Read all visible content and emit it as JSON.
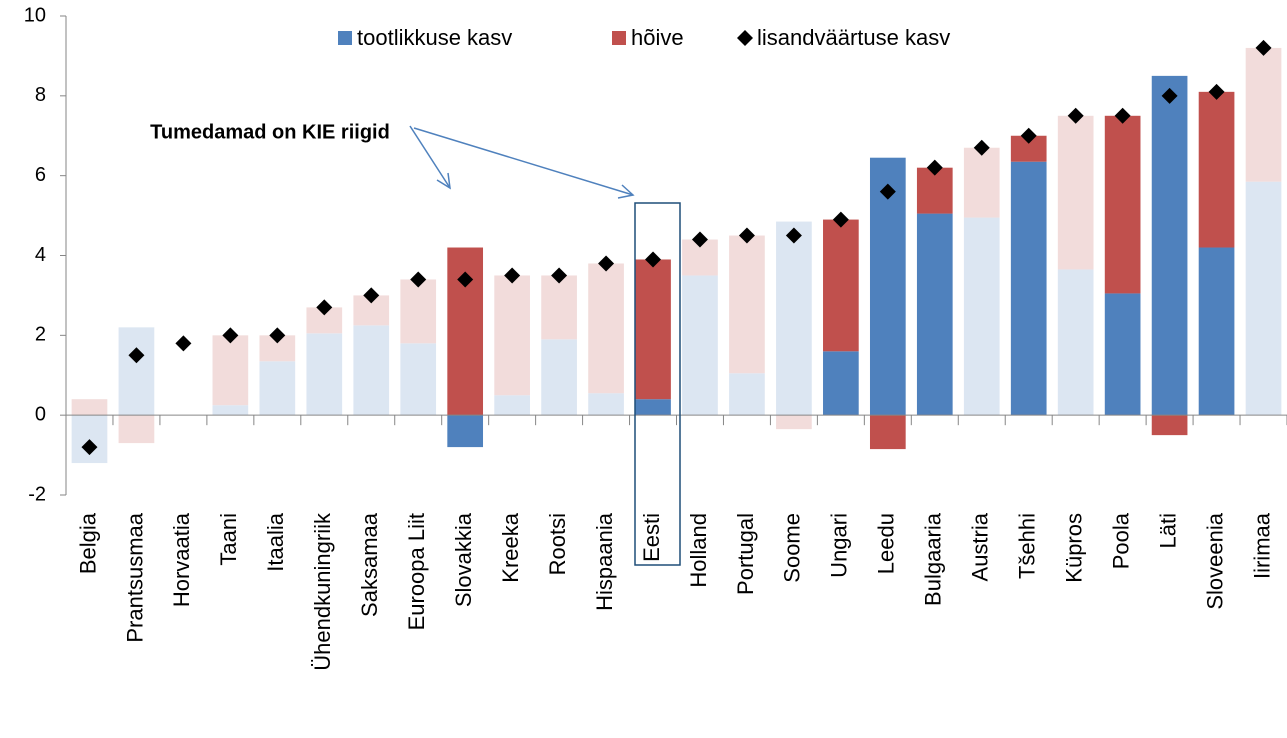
{
  "chart_data": {
    "type": "bar",
    "categories": [
      "Belgia",
      "Prantsusmaa",
      "Horvaatia",
      "Taani",
      "Itaalia",
      "Ühendkuningriik",
      "Saksamaa",
      "Euroopa Liit",
      "Slovakkia",
      "Kreeka",
      "Rootsi",
      "Hispaania",
      "Eesti",
      "Holland",
      "Portugal",
      "Soome",
      "Ungari",
      "Leedu",
      "Bulgaaria",
      "Austria",
      "Tšehhi",
      "Küpros",
      "Poola",
      "Läti",
      "Sloveenia",
      "Iirimaa"
    ],
    "series": [
      {
        "name": "tootlikkuse kasv",
        "color": "#4f81bd",
        "colors": [
          "#dce6f2",
          "#dce6f2",
          "#dce6f2",
          "#dce6f2",
          "#dce6f2",
          "#dce6f2",
          "#dce6f2",
          "#dce6f2",
          "#4f81bd",
          "#dce6f2",
          "#dce6f2",
          "#dce6f2",
          "#4f81bd",
          "#dce6f2",
          "#dce6f2",
          "#dce6f2",
          "#4f81bd",
          "#4f81bd",
          "#4f81bd",
          "#dce6f2",
          "#4f81bd",
          "#dce6f2",
          "#4f81bd",
          "#4f81bd",
          "#4f81bd",
          "#dce6f2"
        ],
        "values": [
          -1.2,
          2.2,
          null,
          0.25,
          1.35,
          2.05,
          2.25,
          1.8,
          -0.8,
          0.5,
          1.9,
          0.55,
          0.4,
          3.5,
          1.05,
          4.85,
          1.6,
          6.45,
          5.05,
          4.95,
          6.35,
          3.65,
          3.05,
          8.5,
          4.2,
          5.85
        ]
      },
      {
        "name": "hõive",
        "color": "#c0504d",
        "colors": [
          "#f2dcdb",
          "#f2dcdb",
          "#f2dcdb",
          "#f2dcdb",
          "#f2dcdb",
          "#f2dcdb",
          "#f2dcdb",
          "#f2dcdb",
          "#c0504d",
          "#f2dcdb",
          "#f2dcdb",
          "#f2dcdb",
          "#c0504d",
          "#f2dcdb",
          "#f2dcdb",
          "#f2dcdb",
          "#c0504d",
          "#c0504d",
          "#c0504d",
          "#f2dcdb",
          "#c0504d",
          "#f2dcdb",
          "#c0504d",
          "#c0504d",
          "#c0504d",
          "#f2dcdb"
        ],
        "values": [
          0.4,
          -0.7,
          null,
          1.75,
          0.65,
          0.65,
          0.75,
          1.6,
          4.2,
          3.0,
          1.6,
          3.25,
          3.5,
          0.9,
          3.45,
          -0.35,
          3.3,
          -0.85,
          1.15,
          1.75,
          0.65,
          3.85,
          4.45,
          -0.5,
          3.9,
          3.35
        ]
      },
      {
        "name": "lisandväärtuse kasv",
        "color": "#000000",
        "type": "scatter",
        "values": [
          -0.8,
          1.5,
          1.8,
          2.0,
          2.0,
          2.7,
          3.0,
          3.4,
          3.4,
          3.5,
          3.5,
          3.8,
          3.9,
          4.4,
          4.5,
          4.5,
          4.9,
          5.6,
          6.2,
          6.7,
          7.0,
          7.5,
          7.5,
          8.0,
          8.1,
          9.2
        ]
      }
    ],
    "annotation": "Tumedamad on KIE riigid",
    "ylim": [
      -2,
      10
    ],
    "yticks": [
      -2,
      0,
      2,
      4,
      6,
      8,
      10
    ],
    "stacked": true,
    "legend": "top"
  }
}
